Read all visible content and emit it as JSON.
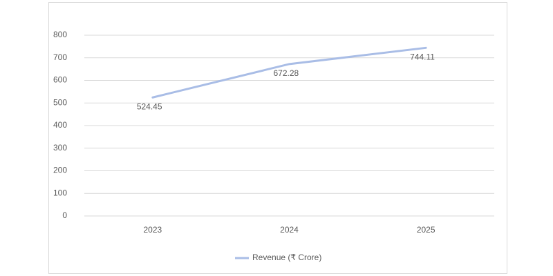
{
  "chart_data": {
    "type": "line",
    "categories": [
      "2023",
      "2024",
      "2025"
    ],
    "series": [
      {
        "name": "Revenue (₹ Crore)",
        "color": "#a9bde6",
        "values": [
          524.45,
          672.28,
          744.11
        ]
      }
    ],
    "ylim": [
      0,
      800
    ],
    "yticks": [
      0,
      100,
      200,
      300,
      400,
      500,
      600,
      700,
      800
    ],
    "grid": true,
    "legend": "bottom"
  }
}
